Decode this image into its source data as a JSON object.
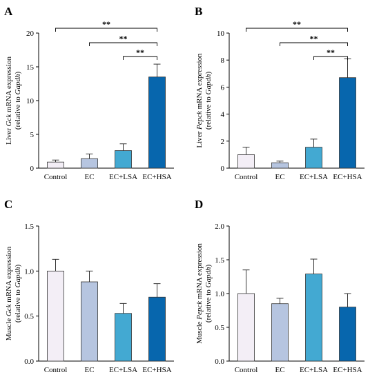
{
  "colors": {
    "control": "#f3eef6",
    "ec": "#b6c5e0",
    "ec_lsa": "#43a9d2",
    "ec_hsa": "#0766ad",
    "bar_edge": "#333333",
    "axis": "#000000"
  },
  "chart_data": [
    {
      "type": "bar",
      "panel": "A",
      "categories": [
        "Control",
        "EC",
        "EC+LSA",
        "EC+HSA"
      ],
      "values": [
        0.9,
        1.4,
        2.6,
        13.5
      ],
      "errors": [
        0.3,
        0.7,
        1.0,
        1.9
      ],
      "ylabel_parts": [
        {
          "text": "Liver ",
          "italic": false
        },
        {
          "text": "Gck",
          "italic": true
        },
        {
          "text": " mRNA expression",
          "italic": false
        }
      ],
      "ylabel_parts2": [
        {
          "text": "(relative to ",
          "italic": false
        },
        {
          "text": "Gapdh",
          "italic": true
        },
        {
          "text": ")",
          "italic": false
        }
      ],
      "ylim": [
        0,
        20
      ],
      "yticks": [
        0,
        5,
        10,
        15,
        20
      ],
      "ytick_labels": [
        "0",
        "5",
        "10",
        "15",
        "20"
      ],
      "significance": [
        {
          "from": 0,
          "to": 3,
          "label": "**"
        },
        {
          "from": 1,
          "to": 3,
          "label": "**"
        },
        {
          "from": 2,
          "to": 3,
          "label": "**"
        }
      ],
      "grid": false,
      "legend": "none"
    },
    {
      "type": "bar",
      "panel": "B",
      "categories": [
        "Control",
        "EC",
        "EC+LSA",
        "EC+HSA"
      ],
      "values": [
        1.0,
        0.4,
        1.55,
        6.7
      ],
      "errors": [
        0.55,
        0.12,
        0.6,
        1.4
      ],
      "ylabel_parts": [
        {
          "text": "Liver ",
          "italic": false
        },
        {
          "text": "Pepck",
          "italic": true
        },
        {
          "text": " mRNA expression",
          "italic": false
        }
      ],
      "ylabel_parts2": [
        {
          "text": "(relative to ",
          "italic": false
        },
        {
          "text": "Gapdh",
          "italic": true
        },
        {
          "text": ")",
          "italic": false
        }
      ],
      "ylim": [
        0,
        10
      ],
      "yticks": [
        0,
        2,
        4,
        6,
        8,
        10
      ],
      "ytick_labels": [
        "0",
        "2",
        "4",
        "6",
        "8",
        "10"
      ],
      "significance": [
        {
          "from": 0,
          "to": 3,
          "label": "**"
        },
        {
          "from": 1,
          "to": 3,
          "label": "**"
        },
        {
          "from": 2,
          "to": 3,
          "label": "**"
        }
      ],
      "grid": false,
      "legend": "none"
    },
    {
      "type": "bar",
      "panel": "C",
      "categories": [
        "Control",
        "EC",
        "EC+LSA",
        "EC+HSA"
      ],
      "values": [
        1.0,
        0.88,
        0.53,
        0.71
      ],
      "errors": [
        0.13,
        0.12,
        0.11,
        0.15
      ],
      "ylabel_parts": [
        {
          "text": "Muscle ",
          "italic": false
        },
        {
          "text": "Gck",
          "italic": true
        },
        {
          "text": " mRNA expression",
          "italic": false
        }
      ],
      "ylabel_parts2": [
        {
          "text": "(relative to ",
          "italic": false
        },
        {
          "text": "Gapdh",
          "italic": true
        },
        {
          "text": ")",
          "italic": false
        }
      ],
      "ylim": [
        0,
        1.5
      ],
      "yticks": [
        0,
        0.5,
        1.0,
        1.5
      ],
      "ytick_labels": [
        "0.0",
        "0.5",
        "1.0",
        "1.5"
      ],
      "significance": [],
      "grid": false,
      "legend": "none"
    },
    {
      "type": "bar",
      "panel": "D",
      "categories": [
        "Control",
        "EC",
        "EC+LSA",
        "EC+HSA"
      ],
      "values": [
        1.0,
        0.85,
        1.29,
        0.8
      ],
      "errors": [
        0.35,
        0.08,
        0.22,
        0.2
      ],
      "ylabel_parts": [
        {
          "text": "Muscle ",
          "italic": false
        },
        {
          "text": "Pepck",
          "italic": true
        },
        {
          "text": " mRNA expression",
          "italic": false
        }
      ],
      "ylabel_parts2": [
        {
          "text": "(relative to ",
          "italic": false
        },
        {
          "text": "Gapdh",
          "italic": true
        },
        {
          "text": ")",
          "italic": false
        }
      ],
      "ylim": [
        0,
        2.0
      ],
      "yticks": [
        0,
        0.5,
        1.0,
        1.5,
        2.0
      ],
      "ytick_labels": [
        "0.0",
        "0.5",
        "1.0",
        "1.5",
        "2.0"
      ],
      "significance": [],
      "grid": false,
      "legend": "none"
    }
  ]
}
